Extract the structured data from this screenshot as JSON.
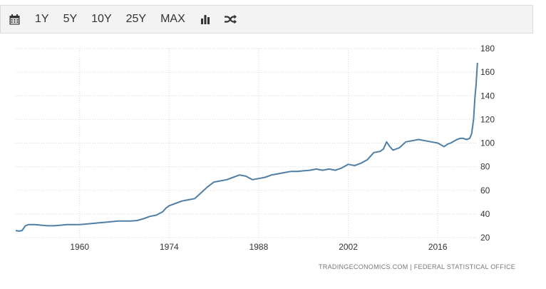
{
  "toolbar": {
    "calendar_icon": "calendar-icon",
    "ranges": [
      "1Y",
      "5Y",
      "10Y",
      "25Y",
      "MAX"
    ],
    "bar_chart_icon": "bar-chart-icon",
    "shuffle_icon": "shuffle-icon"
  },
  "source_text": "TRADINGECONOMICS.COM  |  FEDERAL STATISTICAL OFFICE",
  "colors": {
    "line": "#4f7fa6",
    "grid": "#d9d9d9",
    "toolbar_bg": "#f3f3f3"
  },
  "chart_data": {
    "type": "line",
    "title": "",
    "xlabel": "",
    "ylabel": "",
    "x_ticks": [
      "1960",
      "1974",
      "1988",
      "2002",
      "2016"
    ],
    "y_ticks": [
      20,
      40,
      60,
      80,
      100,
      120,
      140,
      160,
      180
    ],
    "ylim": [
      20,
      180
    ],
    "xlim": [
      1950,
      2022
    ],
    "y_axis_side": "right",
    "grid": true,
    "series": [
      {
        "values": [
          [
            1950.0,
            26
          ],
          [
            1950.5,
            25.5
          ],
          [
            1951.0,
            26
          ],
          [
            1951.5,
            30
          ],
          [
            1952.0,
            31
          ],
          [
            1953.0,
            31
          ],
          [
            1954.0,
            30.5
          ],
          [
            1955.0,
            30
          ],
          [
            1956.0,
            30
          ],
          [
            1957.0,
            30.5
          ],
          [
            1958.0,
            31
          ],
          [
            1959.0,
            31
          ],
          [
            1960.0,
            31
          ],
          [
            1961.0,
            31.5
          ],
          [
            1962.0,
            32
          ],
          [
            1963.0,
            32.5
          ],
          [
            1964.0,
            33
          ],
          [
            1965.0,
            33.5
          ],
          [
            1966.0,
            34
          ],
          [
            1967.0,
            34
          ],
          [
            1968.0,
            34
          ],
          [
            1969.0,
            34.5
          ],
          [
            1970.0,
            36
          ],
          [
            1971.0,
            38
          ],
          [
            1972.0,
            39
          ],
          [
            1973.0,
            42
          ],
          [
            1973.5,
            45
          ],
          [
            1974.0,
            47
          ],
          [
            1975.0,
            49
          ],
          [
            1976.0,
            51
          ],
          [
            1977.0,
            52
          ],
          [
            1978.0,
            53
          ],
          [
            1979.0,
            58
          ],
          [
            1980.0,
            63
          ],
          [
            1981.0,
            67
          ],
          [
            1982.0,
            68
          ],
          [
            1983.0,
            69
          ],
          [
            1984.0,
            71
          ],
          [
            1985.0,
            73
          ],
          [
            1986.0,
            72
          ],
          [
            1987.0,
            69
          ],
          [
            1988.0,
            70
          ],
          [
            1989.0,
            71
          ],
          [
            1990.0,
            73
          ],
          [
            1991.0,
            74
          ],
          [
            1992.0,
            75
          ],
          [
            1993.0,
            76
          ],
          [
            1994.0,
            76
          ],
          [
            1995.0,
            76.5
          ],
          [
            1996.0,
            77
          ],
          [
            1997.0,
            78
          ],
          [
            1998.0,
            77
          ],
          [
            1999.0,
            78
          ],
          [
            2000.0,
            77
          ],
          [
            2001.0,
            79
          ],
          [
            2002.0,
            82
          ],
          [
            2003.0,
            81
          ],
          [
            2004.0,
            83
          ],
          [
            2005.0,
            86
          ],
          [
            2006.0,
            92
          ],
          [
            2007.0,
            93
          ],
          [
            2007.5,
            95
          ],
          [
            2008.0,
            101
          ],
          [
            2008.5,
            97
          ],
          [
            2009.0,
            94
          ],
          [
            2010.0,
            96
          ],
          [
            2011.0,
            101
          ],
          [
            2012.0,
            102
          ],
          [
            2013.0,
            103
          ],
          [
            2014.0,
            102
          ],
          [
            2015.0,
            101
          ],
          [
            2016.0,
            100
          ],
          [
            2017.0,
            97
          ],
          [
            2017.5,
            99
          ],
          [
            2018.0,
            100
          ],
          [
            2019.0,
            103
          ],
          [
            2019.5,
            104
          ],
          [
            2020.0,
            104
          ],
          [
            2020.5,
            103
          ],
          [
            2021.0,
            104
          ],
          [
            2021.3,
            108
          ],
          [
            2021.6,
            120
          ],
          [
            2021.8,
            138
          ],
          [
            2022.0,
            150
          ],
          [
            2022.2,
            168
          ]
        ]
      }
    ]
  }
}
